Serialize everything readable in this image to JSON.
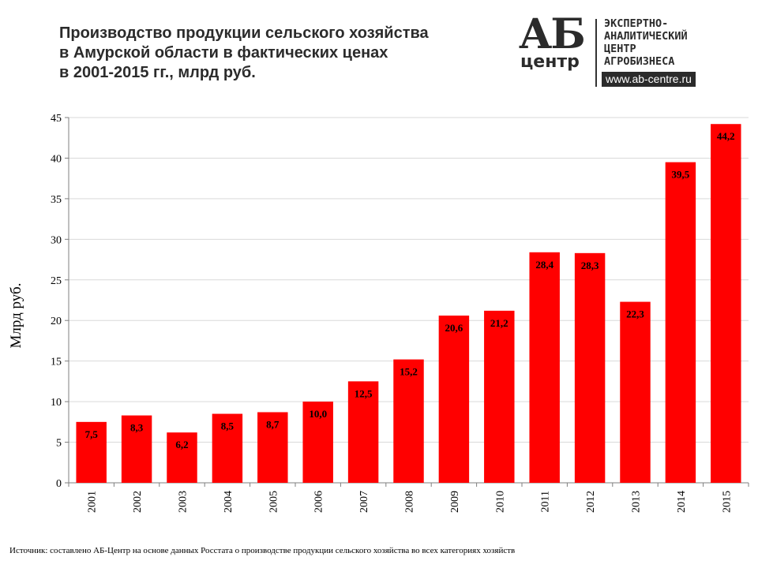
{
  "title_lines": [
    "Производство продукции сельского хозяйства",
    "в Амурской области в фактических ценах",
    "в 2001-2015 гг., млрд руб."
  ],
  "logo": {
    "mark_top": "АБ",
    "mark_bottom": "центр",
    "text_lines": [
      "ЭКСПЕРТНО-",
      "АНАЛИТИЧЕСКИЙ",
      "ЦЕНТР",
      "АГРОБИЗНЕСА"
    ],
    "url": "www.ab-centre.ru"
  },
  "source": "Источник: составлено АБ-Центр на основе данных Росстата о производстве продукции сельского хозяйства во всех категориях хозяйств",
  "colors": {
    "bar": "#ff0000",
    "grid": "#d9d9d9",
    "axis": "#7f7f7f",
    "text": "#000000"
  },
  "chart_data": {
    "type": "bar",
    "categories": [
      "2001",
      "2002",
      "2003",
      "2004",
      "2005",
      "2006",
      "2007",
      "2008",
      "2009",
      "2010",
      "2011",
      "2012",
      "2013",
      "2014",
      "2015"
    ],
    "series": [
      {
        "values": [
          7.5,
          8.3,
          6.2,
          8.5,
          8.7,
          10.0,
          12.5,
          15.2,
          20.6,
          21.2,
          28.4,
          28.3,
          22.3,
          39.5,
          44.2
        ],
        "labels": [
          "7,5",
          "8,3",
          "6,2",
          "8,5",
          "8,7",
          "10,0",
          "12,5",
          "15,2",
          "20,6",
          "21,2",
          "28,4",
          "28,3",
          "22,3",
          "39,5",
          "44,2"
        ]
      }
    ],
    "ylabel": "Млрд руб.",
    "xlabel": "",
    "ylim": [
      0,
      45
    ],
    "yticks": [
      0,
      5,
      10,
      15,
      20,
      25,
      30,
      35,
      40,
      45
    ],
    "grid": true,
    "legend": "none",
    "x_tick_rotation": "vertical",
    "data_labels": "inside-top"
  }
}
